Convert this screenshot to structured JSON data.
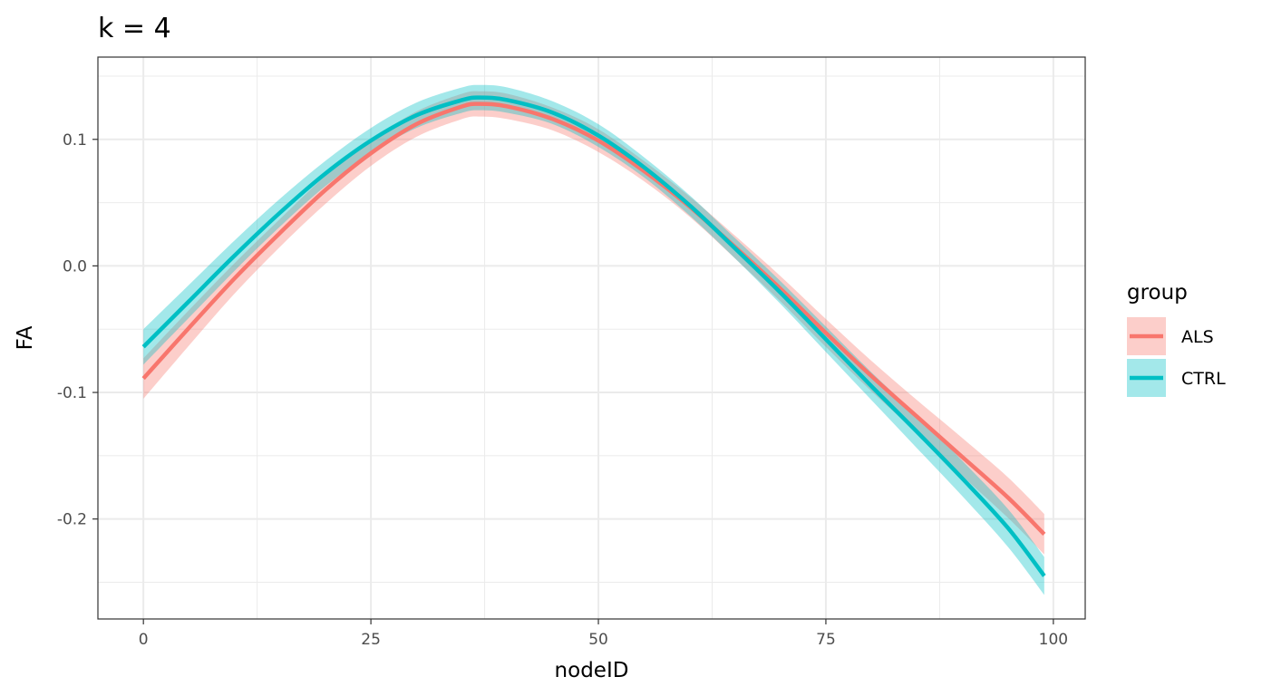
{
  "chart_data": {
    "type": "line",
    "title": "k = 4",
    "xlabel": "nodeID",
    "ylabel": "FA",
    "xlim": [
      -5,
      103.5
    ],
    "ylim": [
      -0.279,
      0.165
    ],
    "x_ticks": [
      {
        "value": 0,
        "label": "0"
      },
      {
        "value": 25,
        "label": "25"
      },
      {
        "value": 50,
        "label": "50"
      },
      {
        "value": 75,
        "label": "75"
      },
      {
        "value": 100,
        "label": "100"
      }
    ],
    "y_ticks": [
      {
        "value": 0.1,
        "label": "0.1"
      },
      {
        "value": 0.0,
        "label": "0.0"
      },
      {
        "value": -0.1,
        "label": "-0.1"
      },
      {
        "value": -0.2,
        "label": "-0.2"
      }
    ],
    "grid": true,
    "legend": {
      "title": "group",
      "position": "right",
      "entries": [
        "ALS",
        "CTRL"
      ]
    },
    "x": [
      0,
      5,
      10,
      15,
      20,
      25,
      30,
      35,
      37,
      40,
      45,
      50,
      55,
      60,
      65,
      70,
      75,
      80,
      85,
      90,
      95,
      99
    ],
    "series": [
      {
        "name": "ALS",
        "color": "#F8766D",
        "band_color": "#F8766D",
        "values": [
          -0.089,
          -0.049,
          -0.01,
          0.026,
          0.06,
          0.089,
          0.112,
          0.126,
          0.128,
          0.126,
          0.116,
          0.099,
          0.075,
          0.047,
          0.015,
          -0.018,
          -0.053,
          -0.087,
          -0.119,
          -0.151,
          -0.183,
          -0.212
        ],
        "ci_lower": [
          -0.105,
          -0.063,
          -0.022,
          0.015,
          0.049,
          0.079,
          0.102,
          0.116,
          0.118,
          0.116,
          0.107,
          0.09,
          0.067,
          0.039,
          0.006,
          -0.028,
          -0.064,
          -0.099,
          -0.132,
          -0.166,
          -0.199,
          -0.228
        ],
        "ci_upper": [
          -0.073,
          -0.035,
          0.002,
          0.037,
          0.071,
          0.099,
          0.122,
          0.136,
          0.138,
          0.136,
          0.125,
          0.108,
          0.083,
          0.055,
          0.024,
          -0.008,
          -0.042,
          -0.075,
          -0.106,
          -0.136,
          -0.167,
          -0.196
        ]
      },
      {
        "name": "CTRL",
        "color": "#00BFC4",
        "band_color": "#00BFC4",
        "values": [
          -0.064,
          -0.028,
          0.008,
          0.042,
          0.073,
          0.099,
          0.119,
          0.131,
          0.133,
          0.131,
          0.121,
          0.103,
          0.078,
          0.048,
          0.014,
          -0.021,
          -0.058,
          -0.095,
          -0.131,
          -0.168,
          -0.207,
          -0.245
        ],
        "ci_lower": [
          -0.078,
          -0.041,
          -0.004,
          0.031,
          0.063,
          0.089,
          0.109,
          0.121,
          0.123,
          0.121,
          0.112,
          0.094,
          0.07,
          0.04,
          0.006,
          -0.03,
          -0.068,
          -0.106,
          -0.144,
          -0.182,
          -0.222,
          -0.26
        ],
        "ci_upper": [
          -0.05,
          -0.015,
          0.02,
          0.053,
          0.083,
          0.109,
          0.129,
          0.141,
          0.143,
          0.141,
          0.13,
          0.112,
          0.086,
          0.056,
          0.022,
          -0.012,
          -0.048,
          -0.084,
          -0.118,
          -0.154,
          -0.192,
          -0.23
        ]
      }
    ]
  }
}
